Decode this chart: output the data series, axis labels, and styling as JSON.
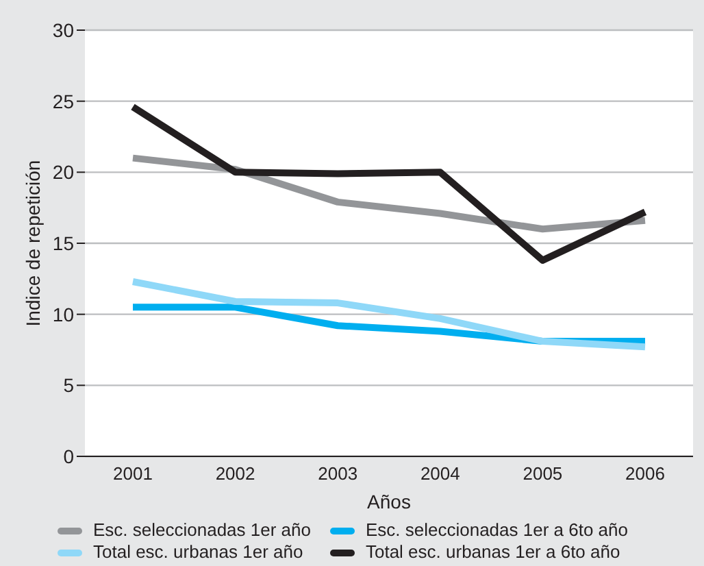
{
  "chart_data": {
    "type": "line",
    "xlabel": "Años",
    "ylabel": "Indice de repetición",
    "categories": [
      "2001",
      "2002",
      "2003",
      "2004",
      "2005",
      "2006"
    ],
    "series": [
      {
        "name": "Esc. seleccionadas 1er año",
        "color": "#939598",
        "values": [
          21,
          20.2,
          17.9,
          17.1,
          16.0,
          16.6
        ]
      },
      {
        "name": "Esc. seleccionadas 1er a 6to año",
        "color": "#00aeef",
        "values": [
          10.5,
          10.5,
          9.2,
          8.8,
          8.1,
          8.1
        ]
      },
      {
        "name": "Total esc. urbanas 1er año",
        "color": "#8fd8f8",
        "values": [
          12.3,
          10.9,
          10.8,
          9.7,
          8.1,
          7.7
        ]
      },
      {
        "name": "Total esc. urbanas 1er a 6to año",
        "color": "#231f20",
        "values": [
          24.6,
          20,
          19.9,
          20,
          13.8,
          17.2
        ]
      }
    ],
    "ylim": [
      0,
      30
    ],
    "yticks": [
      0,
      5,
      10,
      15,
      20,
      25,
      30
    ],
    "grid": "y",
    "legend": "bottom",
    "marker": "none",
    "line_style": "solid"
  }
}
